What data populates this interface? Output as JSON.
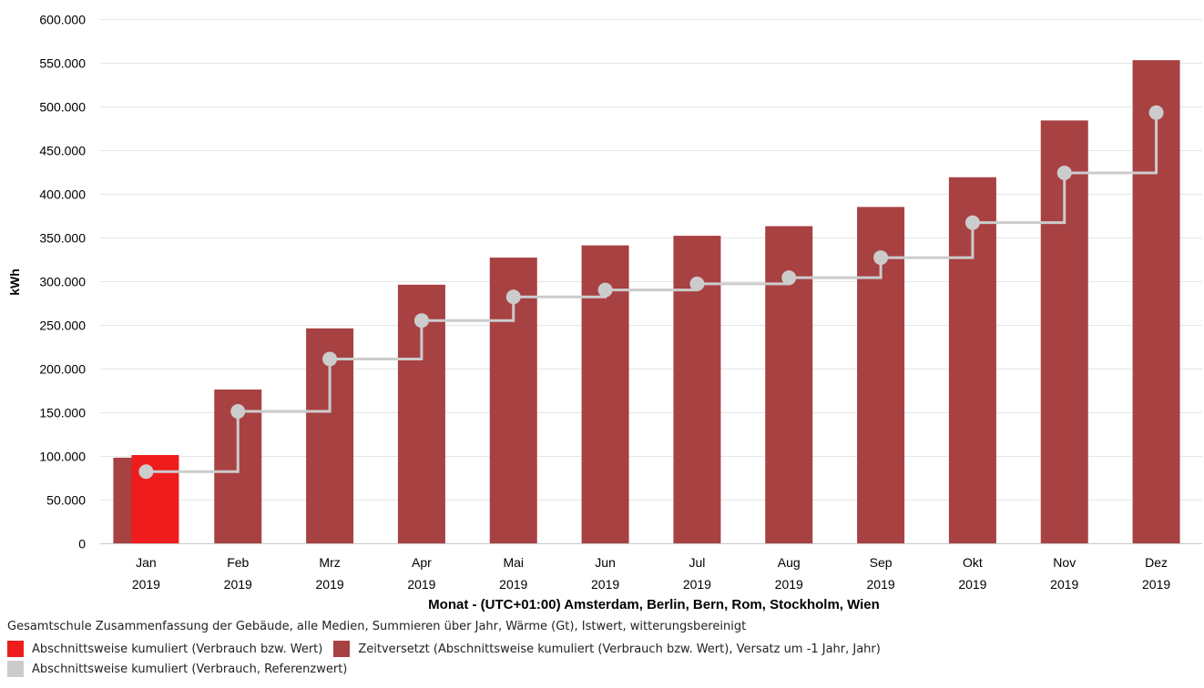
{
  "chart_data": {
    "type": "bar",
    "ylabel": "kWh",
    "xlabel": "Monat - (UTC+01:00) Amsterdam, Berlin, Bern, Rom, Stockholm, Wien",
    "ylim": [
      0,
      600000
    ],
    "yticks": [
      "0",
      "50.000",
      "100.000",
      "150.000",
      "200.000",
      "250.000",
      "300.000",
      "350.000",
      "400.000",
      "450.000",
      "500.000",
      "550.000",
      "600.000"
    ],
    "categories": [
      "Jan",
      "Feb",
      "Mrz",
      "Apr",
      "Mai",
      "Jun",
      "Jul",
      "Aug",
      "Sep",
      "Okt",
      "Nov",
      "Dez"
    ],
    "category_years": [
      "2019",
      "2019",
      "2019",
      "2019",
      "2019",
      "2019",
      "2019",
      "2019",
      "2019",
      "2019",
      "2019",
      "2019"
    ],
    "grid": true,
    "caption": "Gesamtschule Zusammenfassung der Gebäude, alle Medien, Summieren über Jahr, Wärme (Gt), Istwert, witterungsbereinigt",
    "series": [
      {
        "name": "Abschnittsweise kumuliert (Verbrauch bzw. Wert)",
        "type": "bar",
        "color": "#ee1c1c",
        "values": [
          101000,
          null,
          null,
          null,
          null,
          null,
          null,
          null,
          null,
          null,
          null,
          null
        ]
      },
      {
        "name": "Zeitversetzt (Abschnittsweise kumuliert (Verbrauch bzw. Wert), Versatz um -1 Jahr, Jahr)",
        "type": "bar",
        "color": "#a84142",
        "values": [
          98000,
          176000,
          246000,
          296000,
          327000,
          341000,
          352000,
          363000,
          385000,
          419000,
          484000,
          553000
        ]
      },
      {
        "name": "Abschnittsweise kumuliert (Verbrauch, Referenzwert)",
        "type": "step-line",
        "color": "#cccccc",
        "values": [
          82000,
          151000,
          211000,
          255000,
          282000,
          290000,
          297000,
          304000,
          327000,
          367000,
          424000,
          493000
        ]
      }
    ]
  }
}
